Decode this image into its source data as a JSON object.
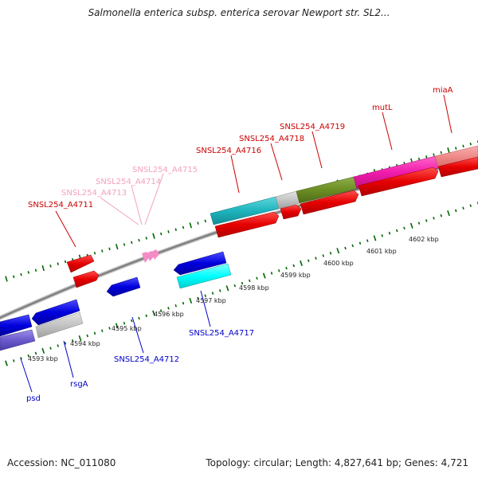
{
  "title": "Salmonella enterica subsp. enterica serovar Newport str. SL2...",
  "footer": {
    "accession": "Accession: NC_011080",
    "topology": "Topology: circular; Length: 4,827,641 bp; Genes: 4,721"
  },
  "scale_labels": [
    "4593 kbp",
    "4594 kbp",
    "4595 kbp",
    "4596 kbp",
    "4597 kbp",
    "4598 kbp",
    "4599 kbp",
    "4600 kbp",
    "4601 kbp",
    "4602 kbp"
  ],
  "gene_labels": {
    "a4711": "SNSL254_A4711",
    "a4713": "SNSL254_A4713",
    "a4714": "SNSL254_A4714",
    "a4715": "SNSL254_A4715",
    "a4716": "SNSL254_A4716",
    "a4718": "SNSL254_A4718",
    "a4719": "SNSL254_A4719",
    "mutl": "mutL",
    "miaa": "miaA",
    "psd": "psd",
    "rsga": "rsgA",
    "a4712": "SNSL254_A4712",
    "a4717": "SNSL254_A4717"
  },
  "colors": {
    "forward_label": "#cc0000",
    "reverse_label": "#0000cc",
    "trna_label": "#f08cb0",
    "tick": "#006600",
    "backbone": "#808080"
  }
}
